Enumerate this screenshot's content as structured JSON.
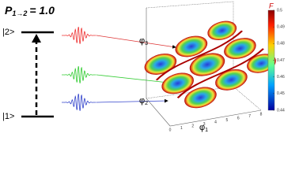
{
  "title": {
    "symbol": "P",
    "subscript": "1→2",
    "value": "= 1.0"
  },
  "levels": {
    "upper": "|2>",
    "lower": "|1>"
  },
  "plot": {
    "axes": [
      {
        "symbol": "φ",
        "sub": "1"
      },
      {
        "symbol": "φ",
        "sub": "2"
      },
      {
        "symbol": "φ",
        "sub": "3"
      }
    ],
    "x_ticks": [
      "0",
      "1",
      "2",
      "3",
      "4",
      "5",
      "6",
      "7",
      "8"
    ],
    "colorbar": {
      "label": "F",
      "ticks": [
        "0.5",
        "0.49",
        "0.48",
        "0.47",
        "0.46",
        "0.45",
        "0.44"
      ]
    }
  }
}
